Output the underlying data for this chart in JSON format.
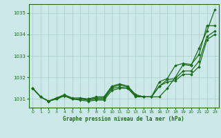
{
  "title": "Graphe pression niveau de la mer (hPa)",
  "bg_color": "#cce8e8",
  "grid_color": "#aacccc",
  "line_color": "#1a6b1a",
  "xlim": [
    -0.5,
    23.5
  ],
  "ylim": [
    1030.6,
    1035.4
  ],
  "yticks": [
    1031,
    1032,
    1033,
    1034,
    1035
  ],
  "xticks": [
    0,
    1,
    2,
    3,
    4,
    5,
    6,
    7,
    8,
    9,
    10,
    11,
    12,
    13,
    14,
    15,
    16,
    17,
    18,
    19,
    20,
    21,
    22,
    23
  ],
  "series": [
    [
      1031.5,
      1031.1,
      1030.9,
      1031.0,
      1031.15,
      1031.0,
      1030.95,
      1030.9,
      1030.95,
      1030.95,
      1031.4,
      1031.5,
      1031.5,
      1031.15,
      1031.1,
      1031.1,
      1031.1,
      1031.5,
      1032.0,
      1032.6,
      1032.55,
      1033.35,
      1034.15,
      1035.15
    ],
    [
      1031.5,
      1031.1,
      1030.9,
      1031.0,
      1031.15,
      1031.0,
      1031.0,
      1031.0,
      1031.05,
      1031.05,
      1031.55,
      1031.65,
      1031.55,
      1031.2,
      1031.1,
      1031.1,
      1031.6,
      1031.9,
      1031.95,
      1032.3,
      1032.3,
      1032.75,
      1033.9,
      1034.15
    ],
    [
      1031.5,
      1031.1,
      1030.9,
      1031.05,
      1031.2,
      1031.05,
      1031.05,
      1031.0,
      1031.1,
      1031.1,
      1031.6,
      1031.7,
      1031.6,
      1031.2,
      1031.1,
      1031.1,
      1031.8,
      1031.95,
      1032.55,
      1032.65,
      1032.6,
      1033.05,
      1034.4,
      1034.4
    ],
    [
      1031.5,
      1031.1,
      1030.9,
      1031.05,
      1031.15,
      1031.0,
      1031.0,
      1030.95,
      1031.0,
      1031.0,
      1031.5,
      1031.55,
      1031.5,
      1031.1,
      1031.1,
      1031.1,
      1031.6,
      1031.8,
      1031.85,
      1032.15,
      1032.15,
      1032.5,
      1033.75,
      1034.0
    ]
  ]
}
